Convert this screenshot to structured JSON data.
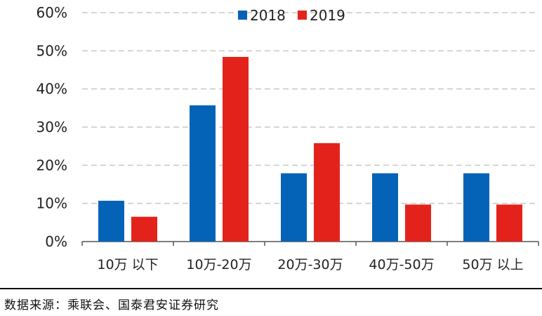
{
  "chart_data": {
    "type": "bar",
    "categories": [
      "10万 以下",
      "10万-20万",
      "20万-30万",
      "40万-50万",
      "50万 以上"
    ],
    "series": [
      {
        "name": "2018",
        "values": [
          10.7,
          35.7,
          17.9,
          17.9,
          17.9
        ],
        "color": "#0563B7"
      },
      {
        "name": "2019",
        "values": [
          6.5,
          48.4,
          25.8,
          9.7,
          9.7
        ],
        "color": "#E3231B"
      }
    ],
    "ylim": [
      0,
      60
    ],
    "yticks": [
      "0%",
      "10%",
      "20%",
      "30%",
      "40%",
      "50%",
      "60%"
    ],
    "grid": true,
    "legend": "top-center"
  },
  "source": "数据来源：乘联会、国泰君安证券研究"
}
